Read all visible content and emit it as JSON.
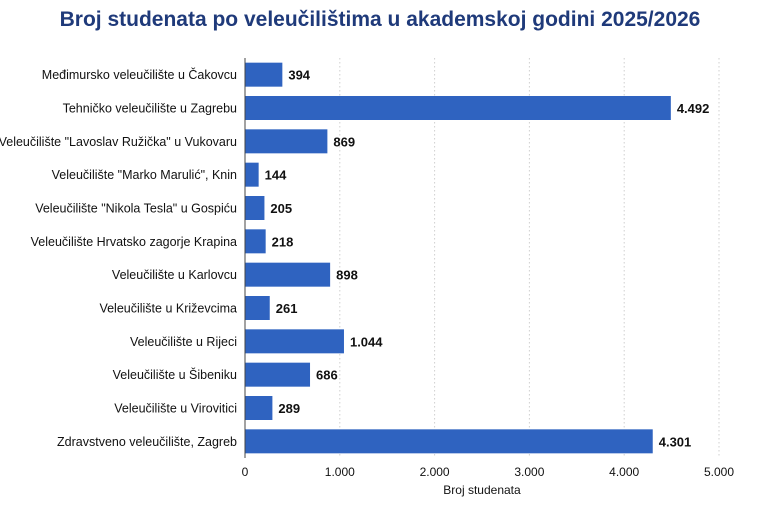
{
  "chart_data": {
    "type": "bar",
    "orientation": "horizontal",
    "title": "Broj studenata po veleučilištima u akademskoj godini 2025/2026",
    "xlabel": "Broj studenata",
    "ylabel": "",
    "categories": [
      "Međimursko veleučilište u Čakovcu",
      "Tehničko veleučilište u Zagrebu",
      "Veleučilište \"Lavoslav Ružička\" u Vukovaru",
      "Veleučilište \"Marko Marulić\", Knin",
      "Veleučilište \"Nikola Tesla\" u Gospiću",
      "Veleučilište Hrvatsko zagorje Krapina",
      "Veleučilište u Karlovcu",
      "Veleučilište u Križevcima",
      "Veleučilište u Rijeci",
      "Veleučilište u Šibeniku",
      "Veleučilište u Virovitici",
      "Zdravstveno veleučilište, Zagreb"
    ],
    "values": [
      394,
      4492,
      869,
      144,
      205,
      218,
      898,
      261,
      1044,
      686,
      289,
      4301
    ],
    "value_labels": [
      "394",
      "4.492",
      "869",
      "144",
      "205",
      "218",
      "898",
      "261",
      "1.044",
      "686",
      "289",
      "4.301"
    ],
    "xlim": [
      0,
      5000
    ],
    "xticks": [
      0,
      1000,
      2000,
      3000,
      4000,
      5000
    ],
    "xtick_labels": [
      "0",
      "1.000",
      "2.000",
      "3.000",
      "4.000",
      "5.000"
    ],
    "grid": "vertical dotted",
    "legend": "none",
    "bar_color": "#2f63c0",
    "title_color": "#1f3a7a"
  }
}
